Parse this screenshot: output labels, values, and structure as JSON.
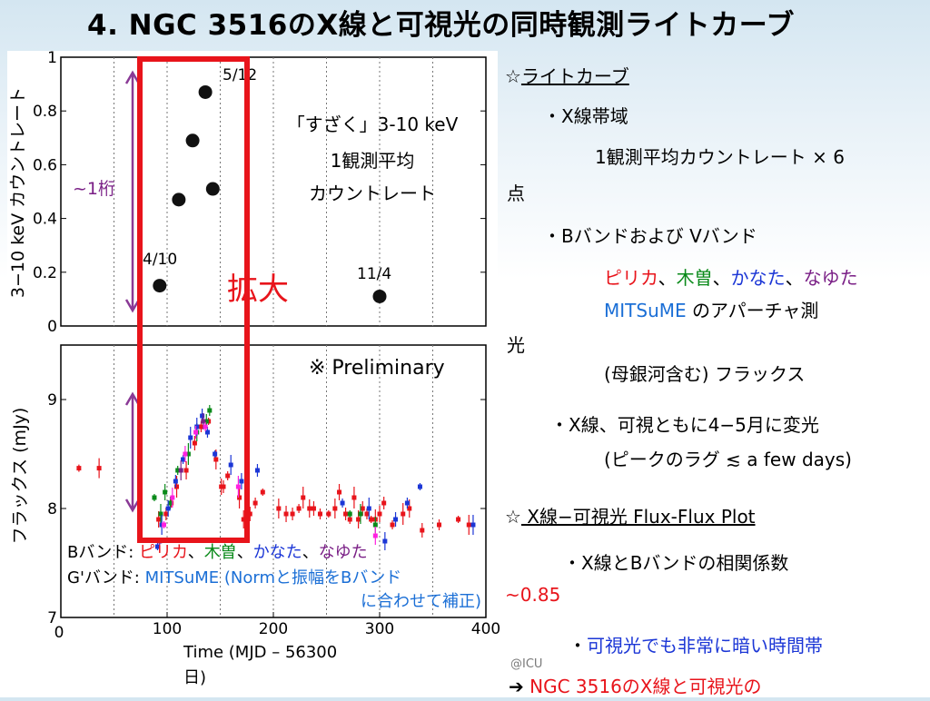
{
  "slide": {
    "title": "4. NGC 3516のX線と可視光の同時観測ライトカーブ",
    "footer_tag": "@ICU"
  },
  "chart_top": {
    "ylabel": "3−10 keV カウントレート",
    "ytick_labels": [
      "0",
      "0.2",
      "0.4",
      "0.6",
      "0.8",
      "1"
    ],
    "xtick_labels": [],
    "annotation_lines": [
      "「すざく」3-10 keV",
      "1観測平均",
      "カウントレート"
    ],
    "date_labels": {
      "first": "4/10",
      "peak": "5/12",
      "last": "11/4"
    },
    "range_label": "~1桁",
    "zoom_label": "拡大"
  },
  "chart_bottom": {
    "ylabel": "フラックス (mJy)",
    "xlabel_line1": "Time (MJD – 56300",
    "xlabel_line2": "日)",
    "ytick_labels": [
      "7",
      "8",
      "9"
    ],
    "xtick_labels": [
      "0",
      "100",
      "200",
      "300",
      "400"
    ],
    "preliminary": "※ Preliminary",
    "legend": {
      "b_prefix": "Bバンド: ",
      "pirika": "ピリカ",
      "sep1": "、",
      "kiso": "木曽",
      "sep2": "、",
      "kanata": "かなた",
      "sep3": "、",
      "nayuta": "なゆた",
      "g_prefix": "G'バンド: ",
      "g_text": "MITSuME (Normと振幅をBバンド",
      "g_text2": "に合わせて補正)"
    }
  },
  "right_panel": {
    "lc_star": "☆",
    "lc_heading": "ライトカーブ",
    "xray_bullet": "・X線帯域",
    "xray_detail": "1観測平均カウントレート × 6",
    "xray_detail_wrap": "点",
    "bv_bullet": "・Bバンドおよび Vバンド",
    "pirika": "ピリカ",
    "kiso": "木曽",
    "kanata": "かなた",
    "nayuta": "なゆた",
    "comma": "、",
    "mitsume": "MITSuME",
    "aperture": " のアパーチャ測",
    "aperture_wrap": "光",
    "host_flux": "(母銀河含む) フラックス",
    "var_bullet": "・X線、可視ともに4−5月に変光",
    "lag_note": "(ピークのラグ ≲ a few days)",
    "ff_star": "☆",
    "ff_heading": " X線−可視光 Flux-Flux Plot",
    "corr_bullet": "・X線とBバンドの相関係数",
    "corr_value": "~0.85",
    "dim_bullet_dot": "・",
    "dim_bullet": "可視光でも非常に暗い時間帯",
    "arrow": "➔",
    "conclusion": " NGC 3516のX線と可視光の"
  },
  "colors": {
    "pirika": "#e8141b",
    "kiso": "#0a8a1a",
    "kanata": "#1b36d6",
    "nayuta": "#7a1f86",
    "mitsume": "#1b6fd6",
    "magenta": "#ff20e0",
    "cyan": "#20d8e8",
    "zoom_box": "#e8141b",
    "arrow": "#8a3a96"
  },
  "chart_data": [
    {
      "type": "scatter",
      "name": "X-ray count rate (Suzaku 3-10 keV)",
      "ylabel": "3−10 keV カウントレート",
      "ylim": [
        0,
        1
      ],
      "xlim": [
        0,
        400
      ],
      "points": [
        {
          "x": 93,
          "y": 0.15
        },
        {
          "x": 111,
          "y": 0.47
        },
        {
          "x": 124,
          "y": 0.69
        },
        {
          "x": 136,
          "y": 0.87
        },
        {
          "x": 143,
          "y": 0.51
        },
        {
          "x": 300,
          "y": 0.11
        }
      ]
    },
    {
      "type": "scatter",
      "name": "Optical flux",
      "xlabel": "Time (MJD – 56300 日)",
      "ylabel": "フラックス (mJy)",
      "xlim": [
        0,
        400
      ],
      "ylim": [
        7,
        9.5
      ],
      "series": [
        {
          "name": "ピリカ",
          "color": "#e8141b",
          "points": [
            [
              17,
              8.37
            ],
            [
              36,
              8.37
            ],
            [
              92,
              7.9
            ],
            [
              99,
              7.95
            ],
            [
              104,
              8.05
            ],
            [
              109,
              8.2
            ],
            [
              118,
              8.35
            ],
            [
              126,
              8.6
            ],
            [
              132,
              8.75
            ],
            [
              139,
              8.8
            ],
            [
              146,
              8.45
            ],
            [
              151,
              8.2
            ],
            [
              153,
              8.2
            ],
            [
              157,
              8.3
            ],
            [
              168,
              8.1
            ],
            [
              172,
              7.9
            ],
            [
              178,
              7.95
            ],
            [
              183,
              8.05
            ],
            [
              190,
              8.15
            ],
            [
              205,
              8.0
            ],
            [
              212,
              7.95
            ],
            [
              218,
              7.95
            ],
            [
              224,
              8.0
            ],
            [
              228,
              8.1
            ],
            [
              234,
              8.0
            ],
            [
              238,
              8.0
            ],
            [
              244,
              7.95
            ],
            [
              252,
              7.95
            ],
            [
              258,
              8.0
            ],
            [
              262,
              8.15
            ],
            [
              268,
              7.95
            ],
            [
              272,
              7.9
            ],
            [
              276,
              8.1
            ],
            [
              280,
              7.9
            ],
            [
              284,
              8.0
            ],
            [
              288,
              7.95
            ],
            [
              292,
              7.9
            ],
            [
              296,
              7.9
            ],
            [
              300,
              7.95
            ],
            [
              304,
              8.05
            ],
            [
              312,
              7.85
            ],
            [
              322,
              7.95
            ],
            [
              328,
              8.0
            ],
            [
              340,
              7.8
            ],
            [
              356,
              7.85
            ],
            [
              374,
              7.9
            ],
            [
              384,
              7.85
            ]
          ]
        },
        {
          "name": "木曽",
          "color": "#0a8a1a",
          "points": [
            [
              88,
              8.1
            ],
            [
              94,
              7.95
            ],
            [
              98,
              8.15
            ],
            [
              103,
              8.05
            ],
            [
              110,
              8.35
            ],
            [
              120,
              8.5
            ],
            [
              128,
              8.7
            ],
            [
              137,
              8.8
            ],
            [
              140,
              8.9
            ],
            [
              272,
              7.95
            ],
            [
              282,
              7.95
            ],
            [
              296,
              7.85
            ]
          ]
        },
        {
          "name": "かなた",
          "color": "#1b36d6",
          "points": [
            [
              91,
              7.65
            ],
            [
              95,
              7.85
            ],
            [
              101,
              8.0
            ],
            [
              108,
              8.25
            ],
            [
              115,
              8.45
            ],
            [
              122,
              8.65
            ],
            [
              128,
              8.75
            ],
            [
              133,
              8.85
            ],
            [
              138,
              8.7
            ],
            [
              145,
              8.5
            ],
            [
              160,
              8.4
            ],
            [
              170,
              8.25
            ],
            [
              185,
              8.35
            ],
            [
              265,
              8.05
            ],
            [
              290,
              8.0
            ],
            [
              305,
              7.7
            ],
            [
              315,
              7.9
            ],
            [
              326,
              8.05
            ],
            [
              338,
              8.2
            ],
            [
              388,
              7.85
            ]
          ]
        },
        {
          "name": "なゆた",
          "color": "#7a1f86",
          "points": [
            [
              93,
              7.7
            ],
            [
              113,
              8.35
            ],
            [
              134,
              8.8
            ]
          ]
        },
        {
          "name": "MITSuME",
          "color": "#ff20e0",
          "points": [
            [
              97,
              7.85
            ],
            [
              105,
              8.1
            ],
            [
              117,
              8.5
            ],
            [
              127,
              8.7
            ],
            [
              136,
              8.75
            ],
            [
              167,
              8.2
            ],
            [
              296,
              7.75
            ]
          ]
        }
      ]
    }
  ]
}
